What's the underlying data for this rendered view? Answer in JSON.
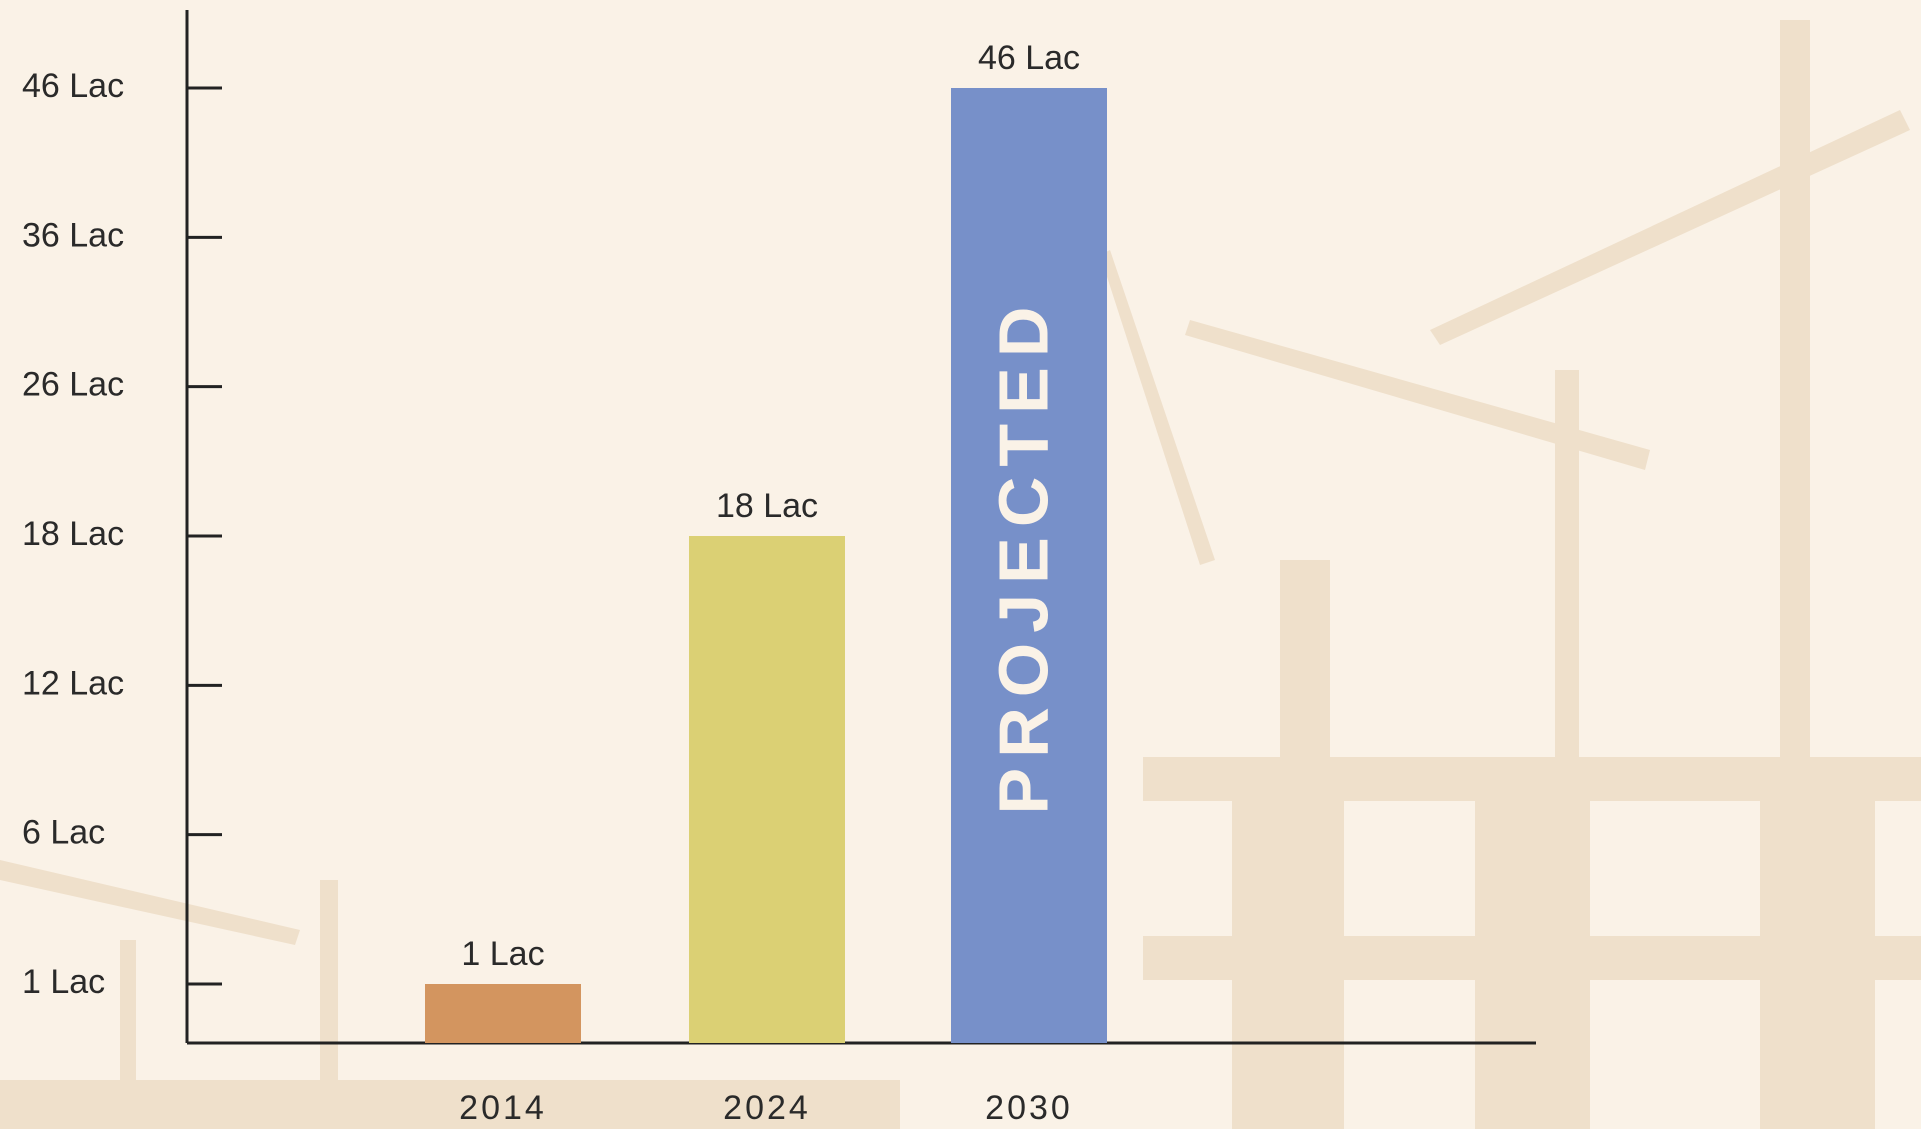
{
  "chart_data": {
    "type": "bar",
    "categories": [
      "2014",
      "2024",
      "2030"
    ],
    "values": [
      1,
      18,
      46
    ],
    "value_labels": [
      "1 Lac",
      "18 Lac",
      "46 Lac"
    ],
    "colors": [
      "#d3955f",
      "#dbd074",
      "#7790c9"
    ],
    "annotation": "PROJECTED",
    "ylim": [
      0,
      46
    ],
    "yticks": [
      {
        "value": 1,
        "label": "1 Lac"
      },
      {
        "value": 6,
        "label": "6 Lac"
      },
      {
        "value": 12,
        "label": "12 Lac"
      },
      {
        "value": 18,
        "label": "18 Lac"
      },
      {
        "value": 26,
        "label": "26 Lac"
      },
      {
        "value": 36,
        "label": "36 Lac"
      },
      {
        "value": 46,
        "label": "46 Lac"
      }
    ]
  }
}
